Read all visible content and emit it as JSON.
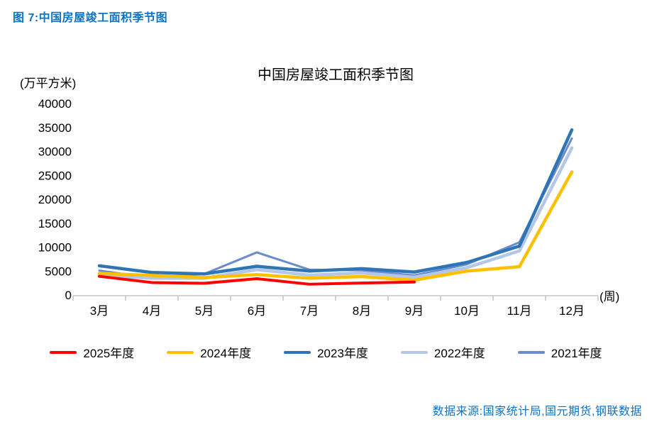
{
  "figure": {
    "caption": "图 7:中国房屋竣工面积季节图"
  },
  "chart": {
    "title": "中国房屋竣工面积季节图",
    "y_unit": "(万平方米)",
    "x_unit": "(周)"
  },
  "chart_data": {
    "type": "line",
    "title": "中国房屋竣工面积季节图",
    "y_axis_label": "(万平方米)",
    "x_axis_label": "(周)",
    "categories": [
      "3月",
      "4月",
      "5月",
      "6月",
      "7月",
      "8月",
      "9月",
      "10月",
      "11月",
      "12月"
    ],
    "ylim": [
      0,
      40000
    ],
    "ytick_step": 5000,
    "grid": false,
    "legend_position": "bottom",
    "series": [
      {
        "name": "2025年度",
        "color": "#FE0000",
        "values": [
          3900,
          2600,
          2450,
          3400,
          2250,
          2500,
          2700,
          null,
          null,
          null
        ]
      },
      {
        "name": "2024年度",
        "color": "#FFC000",
        "values": [
          4500,
          4100,
          3650,
          4250,
          3500,
          3850,
          3100,
          5000,
          5900,
          25700
        ]
      },
      {
        "name": "2023年度",
        "color": "#2E75B6",
        "values": [
          6100,
          4700,
          4400,
          6000,
          5000,
          5500,
          4800,
          6800,
          10200,
          34500
        ]
      },
      {
        "name": "2022年度",
        "color": "#B4C7E7",
        "values": [
          4100,
          3500,
          3500,
          5300,
          4150,
          4600,
          3700,
          5700,
          9200,
          30700
        ]
      },
      {
        "name": "2021年度",
        "color": "#6B8BD0",
        "values": [
          5100,
          3600,
          4400,
          8900,
          5300,
          5150,
          4100,
          6400,
          11000,
          32700
        ]
      }
    ]
  },
  "footer": {
    "source": "数据来源:国家统计局,国元期货,钢联数据"
  }
}
